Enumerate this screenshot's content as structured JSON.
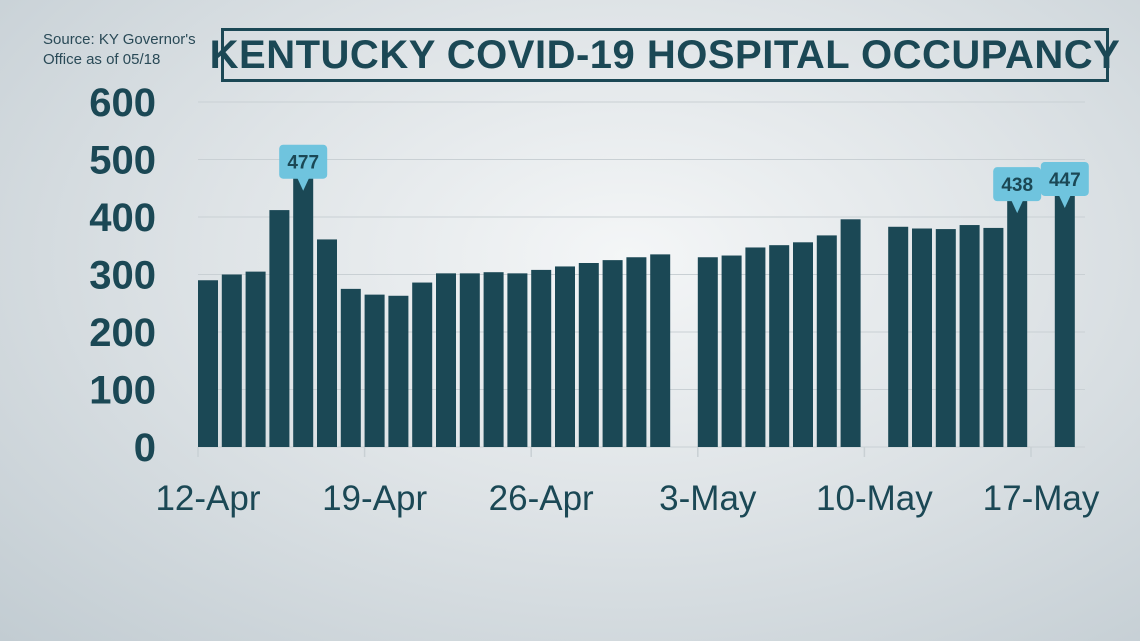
{
  "source_note": "Source: KY Governor's\nOffice as of 05/18",
  "colors": {
    "bar": "#1b4855",
    "callout": "#6fc4de",
    "grid": "#c9d0d4",
    "text": "#1b4855"
  },
  "chart_data": {
    "type": "bar",
    "title": "KENTUCKY COVID-19 HOSPITAL OCCUPANCY",
    "xlabel": "",
    "ylabel": "",
    "ylim": [
      0,
      600
    ],
    "yticks": [
      "0",
      "100",
      "200",
      "300",
      "400",
      "500",
      "600"
    ],
    "xticks": [
      "12-Apr",
      "19-Apr",
      "26-Apr",
      "3-May",
      "10-May",
      "17-May"
    ],
    "grid": true,
    "categories": [
      "12-Apr",
      "13-Apr",
      "14-Apr",
      "15-Apr",
      "16-Apr",
      "17-Apr",
      "18-Apr",
      "19-Apr",
      "20-Apr",
      "21-Apr",
      "22-Apr",
      "23-Apr",
      "24-Apr",
      "25-Apr",
      "26-Apr",
      "27-Apr",
      "28-Apr",
      "29-Apr",
      "30-Apr",
      "1-May",
      "2-May",
      "3-May",
      "4-May",
      "5-May",
      "6-May",
      "7-May",
      "8-May",
      "9-May",
      "10-May",
      "11-May",
      "12-May",
      "13-May",
      "14-May",
      "15-May",
      "16-May",
      "17-May",
      "18-May"
    ],
    "values": [
      290,
      300,
      305,
      412,
      477,
      361,
      275,
      265,
      263,
      286,
      302,
      302,
      304,
      302,
      308,
      314,
      320,
      325,
      330,
      335,
      null,
      330,
      333,
      347,
      351,
      356,
      368,
      396,
      null,
      383,
      380,
      379,
      386,
      381,
      438,
      null,
      447
    ],
    "annotations": [
      {
        "category": "16-Apr",
        "label": "477"
      },
      {
        "category": "16-May",
        "label": "438"
      },
      {
        "category": "18-May",
        "label": "447"
      }
    ]
  }
}
